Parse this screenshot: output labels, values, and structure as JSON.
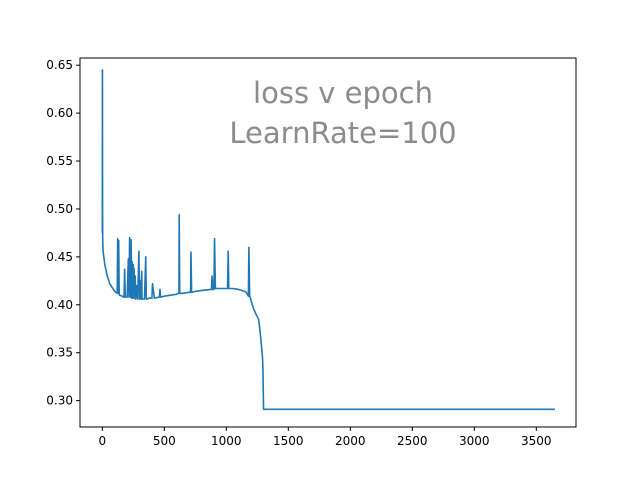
{
  "chart_data": {
    "type": "line",
    "title": "",
    "xlabel": "",
    "ylabel": "",
    "annotations": [
      {
        "text": "loss v epoch"
      },
      {
        "text": "LearnRate=100"
      }
    ],
    "annotation_color": "#8c8c8c",
    "xlim": [
      -180,
      3820
    ],
    "ylim": [
      0.2725,
      0.6575
    ],
    "x_ticks": [
      0,
      500,
      1000,
      1500,
      2000,
      2500,
      3000,
      3500
    ],
    "x_tick_labels": [
      "0",
      "500",
      "1000",
      "1500",
      "2000",
      "2500",
      "3000",
      "3500"
    ],
    "y_ticks": [
      0.3,
      0.35,
      0.4,
      0.45,
      0.5,
      0.55,
      0.6,
      0.65
    ],
    "y_tick_labels": [
      "0.30",
      "0.35",
      "0.40",
      "0.45",
      "0.50",
      "0.55",
      "0.60",
      "0.65"
    ],
    "grid": false,
    "legend": "none",
    "series": [
      {
        "color": "#1f77b4",
        "x": [
          0,
          1,
          2,
          3,
          4,
          5,
          10,
          20,
          40,
          60,
          80,
          100,
          120,
          124,
          126,
          132,
          136,
          140,
          160,
          175,
          180,
          185,
          200,
          210,
          215,
          220,
          228,
          232,
          238,
          240,
          245,
          250,
          252,
          256,
          260,
          265,
          270,
          278,
          285,
          295,
          300,
          305,
          310,
          318,
          320,
          340,
          350,
          355,
          360,
          380,
          400,
          405,
          420,
          460,
          465,
          470,
          500,
          550,
          600,
          618,
          620,
          624,
          630,
          650,
          700,
          712,
          715,
          720,
          750,
          800,
          880,
          885,
          890,
          900,
          905,
          912,
          950,
          1000,
          1010,
          1015,
          1020,
          1050,
          1100,
          1150,
          1160,
          1170,
          1178,
          1182,
          1188,
          1195,
          1200,
          1220,
          1240,
          1260,
          1270,
          1280,
          1285,
          1288,
          1292,
          1296,
          1300,
          1400,
          2000,
          3000,
          3650
        ],
        "y": [
          0.475,
          0.645,
          0.5,
          0.47,
          0.465,
          0.458,
          0.452,
          0.442,
          0.43,
          0.422,
          0.418,
          0.414,
          0.412,
          0.469,
          0.412,
          0.467,
          0.411,
          0.41,
          0.409,
          0.408,
          0.437,
          0.408,
          0.408,
          0.448,
          0.408,
          0.47,
          0.408,
          0.468,
          0.407,
          0.445,
          0.407,
          0.442,
          0.407,
          0.438,
          0.407,
          0.43,
          0.406,
          0.42,
          0.406,
          0.456,
          0.406,
          0.425,
          0.406,
          0.435,
          0.406,
          0.406,
          0.45,
          0.406,
          0.406,
          0.407,
          0.407,
          0.422,
          0.407,
          0.408,
          0.416,
          0.408,
          0.409,
          0.41,
          0.411,
          0.412,
          0.494,
          0.412,
          0.412,
          0.412,
          0.413,
          0.413,
          0.455,
          0.413,
          0.414,
          0.415,
          0.416,
          0.43,
          0.416,
          0.416,
          0.469,
          0.417,
          0.417,
          0.417,
          0.417,
          0.456,
          0.417,
          0.417,
          0.416,
          0.414,
          0.413,
          0.411,
          0.409,
          0.46,
          0.409,
          0.407,
          0.404,
          0.396,
          0.39,
          0.385,
          0.375,
          0.362,
          0.355,
          0.35,
          0.345,
          0.33,
          0.291,
          0.291,
          0.291,
          0.291,
          0.291
        ]
      }
    ]
  }
}
